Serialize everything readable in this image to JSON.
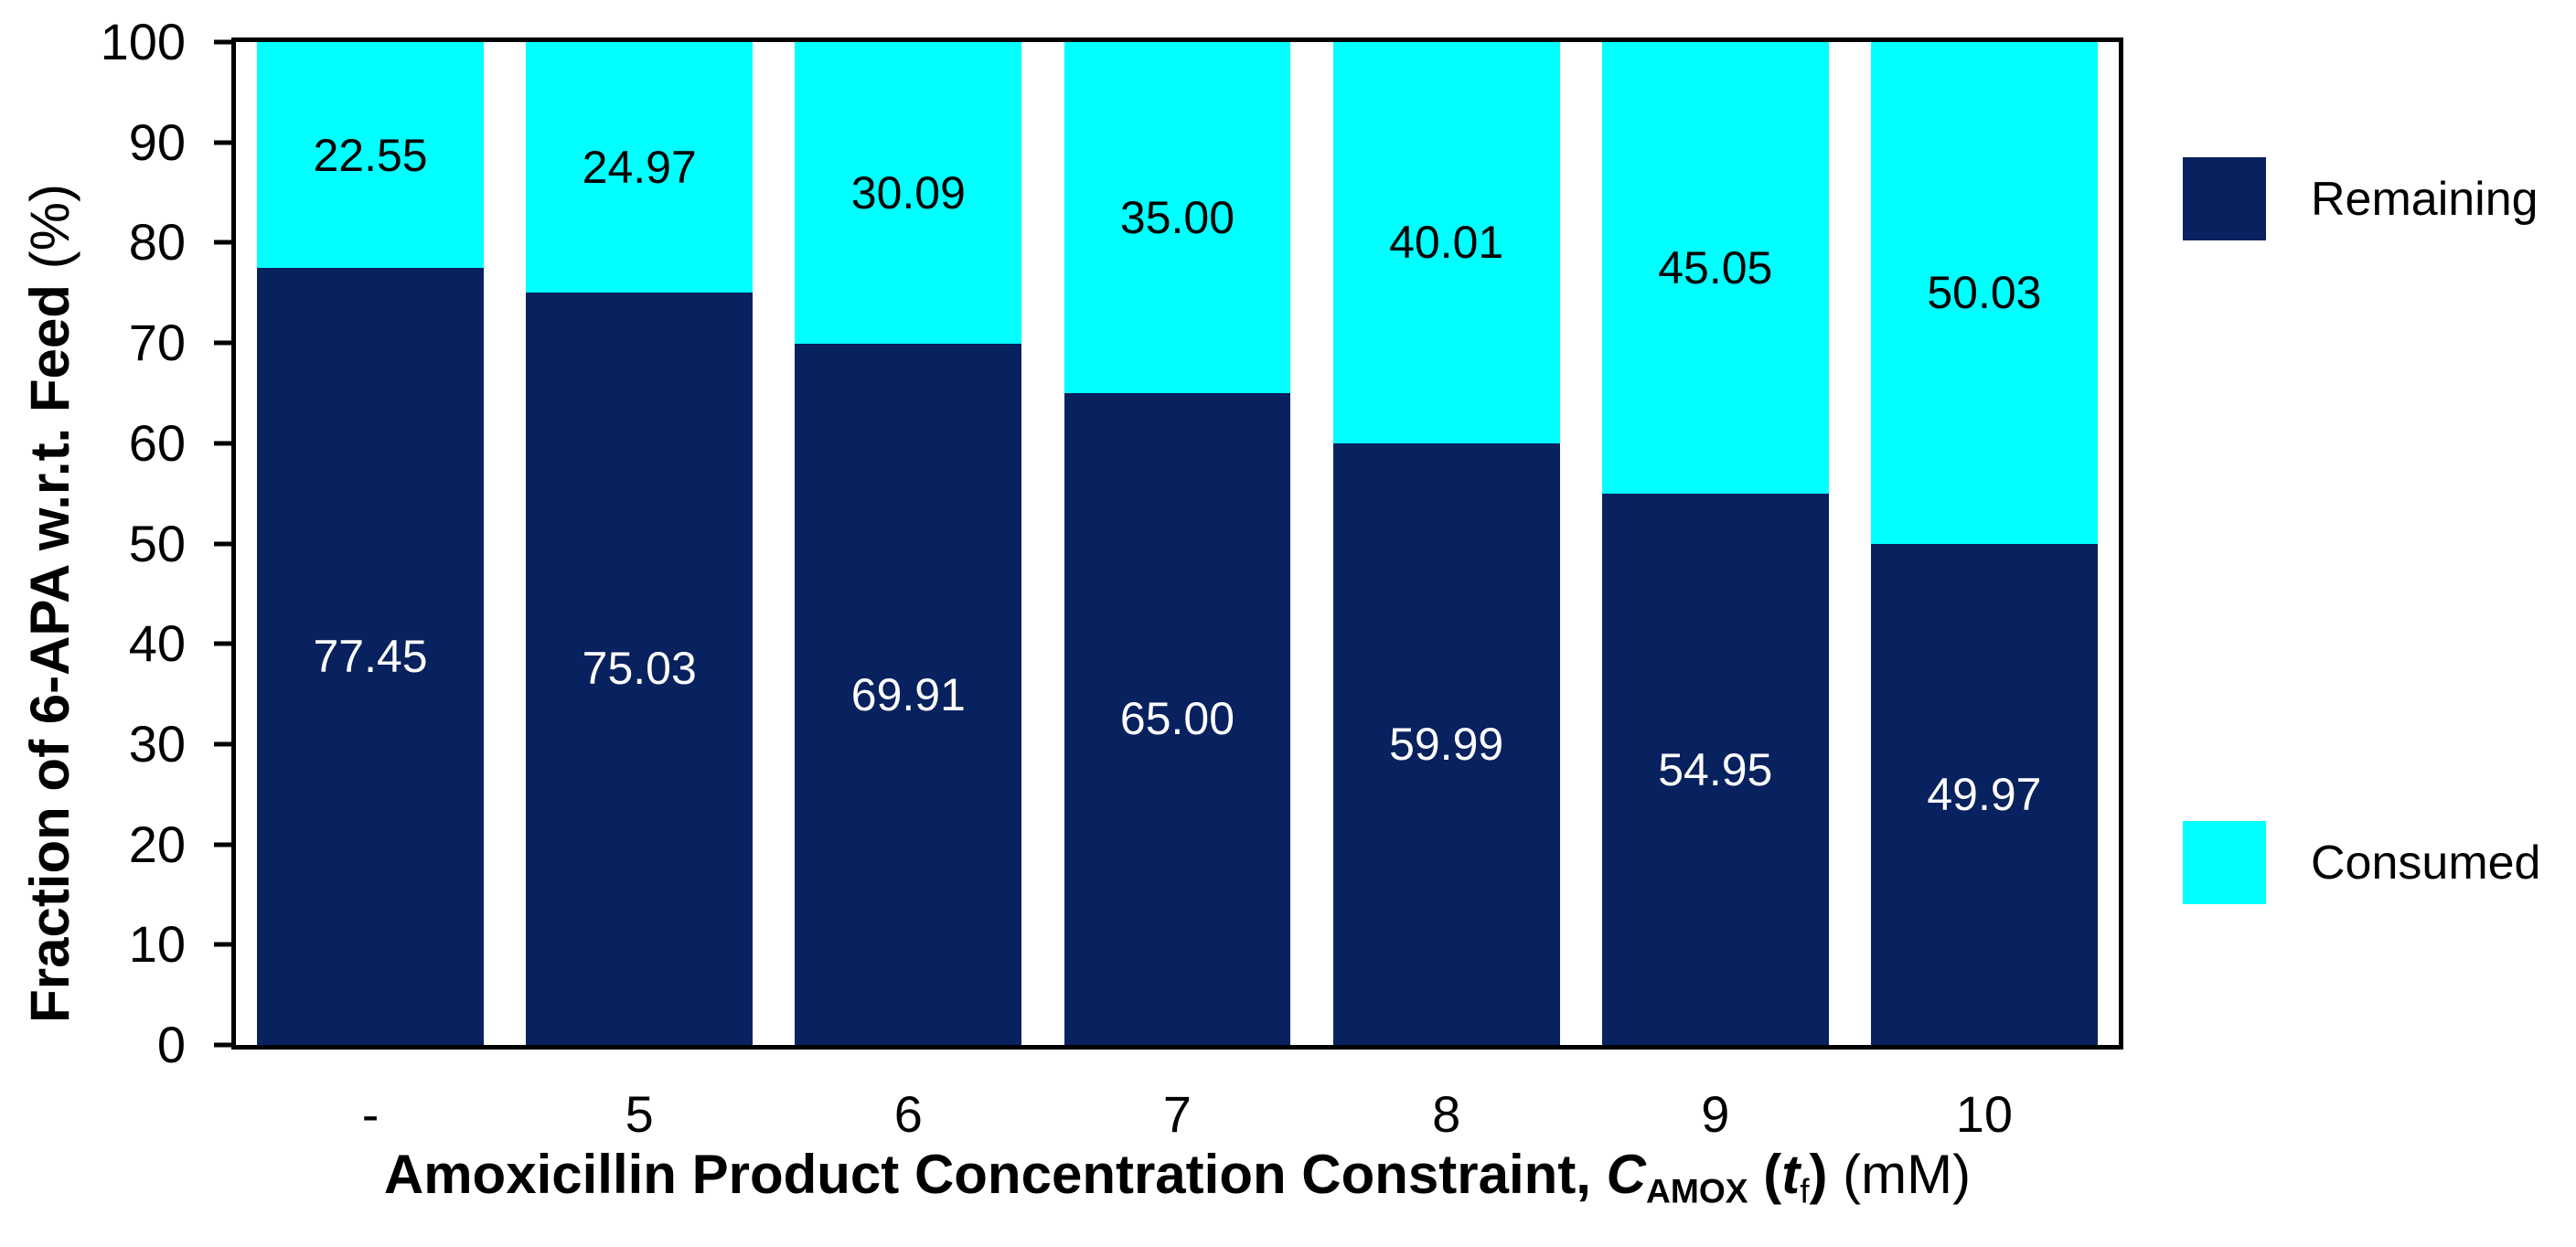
{
  "chart_data": {
    "type": "stacked_bar",
    "categories": [
      "-",
      "5",
      "6",
      "7",
      "8",
      "9",
      "10"
    ],
    "series": [
      {
        "name": "Remaining",
        "color": "#08215F",
        "label_color": "#FFFFFF",
        "values": [
          77.45,
          75.03,
          69.91,
          65.0,
          59.99,
          54.95,
          49.97
        ]
      },
      {
        "name": "Consumed",
        "color": "#00FFFF",
        "label_color": "#000000",
        "values": [
          22.55,
          24.97,
          30.09,
          35.0,
          40.01,
          45.05,
          50.03
        ]
      }
    ],
    "stack_order_bottom_to_top": [
      "Remaining",
      "Consumed"
    ],
    "value_label_decimals": 2,
    "ylim": [
      0,
      100
    ],
    "yticks": [
      0,
      10,
      20,
      30,
      40,
      50,
      60,
      70,
      80,
      90,
      100
    ],
    "grid": false,
    "legend_position": "right-outside",
    "xlabel": {
      "prefix": "Amoxicillin Product Concentration Constraint, ",
      "var": "C",
      "var_sub": "AMOX",
      "open_paren": " (",
      "t_var": "t",
      "t_sub": "f",
      "close_paren": ")",
      "units": " (mM)"
    },
    "ylabel": {
      "main": "Fraction of 6-APA w.r.t. Feed ",
      "units": "(%)"
    }
  },
  "legend": {
    "items": [
      {
        "label": "Remaining",
        "swatch_color": "#08215F"
      },
      {
        "label": "Consumed",
        "swatch_color": "#00FFFF"
      }
    ]
  },
  "colors": {
    "axis": "#000000",
    "background": "#FFFFFF",
    "remaining": "#08215F",
    "consumed": "#00FFFF"
  }
}
